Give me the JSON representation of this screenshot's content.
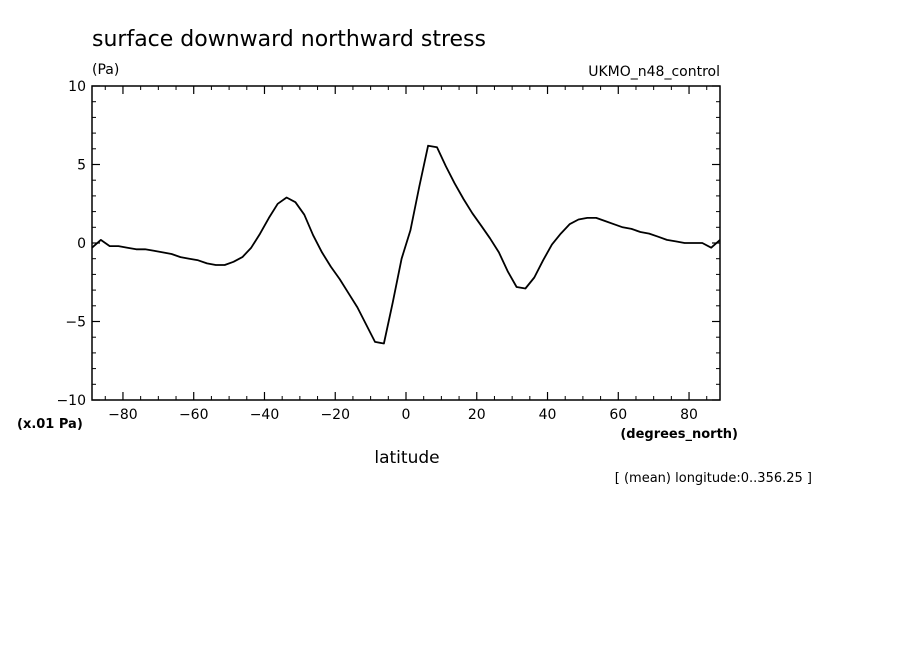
{
  "chart_data": {
    "type": "line",
    "title": "surface downward northward stress",
    "units_label": "(Pa)",
    "dataset_label": "UKMO_n48_control",
    "scale_label": "(x.01 Pa)",
    "xlabel": "latitude",
    "x_units_label": "(degrees_north)",
    "footnote": "[ (mean) longitude:0..356.25 ]",
    "xlim": [
      -88.75,
      88.75
    ],
    "ylim": [
      -10,
      10
    ],
    "x_ticks": [
      -80,
      -60,
      -40,
      -20,
      0,
      20,
      40,
      60,
      80
    ],
    "y_ticks": [
      -10,
      -5,
      0,
      5,
      10
    ],
    "x_tick_labels": [
      "−80",
      "−60",
      "−40",
      "−20",
      "0",
      "20",
      "40",
      "60",
      "80"
    ],
    "y_tick_labels": [
      "−10",
      "−5",
      "0",
      "5",
      "10"
    ],
    "line_color": "#000000",
    "series": [
      {
        "x": [
          -88.75,
          -86.25,
          -83.75,
          -81.25,
          -78.75,
          -76.25,
          -73.75,
          -71.25,
          -68.75,
          -66.25,
          -63.75,
          -61.25,
          -58.75,
          -56.25,
          -53.75,
          -51.25,
          -48.75,
          -46.25,
          -43.75,
          -41.25,
          -38.75,
          -36.25,
          -33.75,
          -31.25,
          -28.75,
          -26.25,
          -23.75,
          -21.25,
          -18.75,
          -16.25,
          -13.75,
          -11.25,
          -8.75,
          -6.25,
          -3.75,
          -1.25,
          1.25,
          3.75,
          6.25,
          8.75,
          11.25,
          13.75,
          16.25,
          18.75,
          21.25,
          23.75,
          26.25,
          28.75,
          31.25,
          33.75,
          36.25,
          38.75,
          41.25,
          43.75,
          46.25,
          48.75,
          51.25,
          53.75,
          56.25,
          58.75,
          61.25,
          63.75,
          66.25,
          68.75,
          71.25,
          73.75,
          76.25,
          78.75,
          81.25,
          83.75,
          86.25,
          88.75
        ],
        "y": [
          -0.3,
          0.2,
          -0.2,
          -0.2,
          -0.3,
          -0.4,
          -0.4,
          -0.5,
          -0.6,
          -0.7,
          -0.9,
          -1.0,
          -1.1,
          -1.3,
          -1.4,
          -1.4,
          -1.2,
          -0.9,
          -0.3,
          0.6,
          1.6,
          2.5,
          2.9,
          2.6,
          1.8,
          0.5,
          -0.6,
          -1.5,
          -2.3,
          -3.2,
          -4.1,
          -5.2,
          -6.3,
          -6.4,
          -3.8,
          -1.0,
          0.8,
          3.6,
          6.2,
          6.1,
          4.9,
          3.8,
          2.8,
          1.9,
          1.1,
          0.3,
          -0.6,
          -1.8,
          -2.8,
          -2.9,
          -2.2,
          -1.1,
          -0.1,
          0.6,
          1.2,
          1.5,
          1.6,
          1.6,
          1.4,
          1.2,
          1.0,
          0.9,
          0.7,
          0.6,
          0.4,
          0.2,
          0.1,
          0.0,
          0.0,
          0.0,
          -0.3,
          0.2
        ]
      }
    ]
  }
}
